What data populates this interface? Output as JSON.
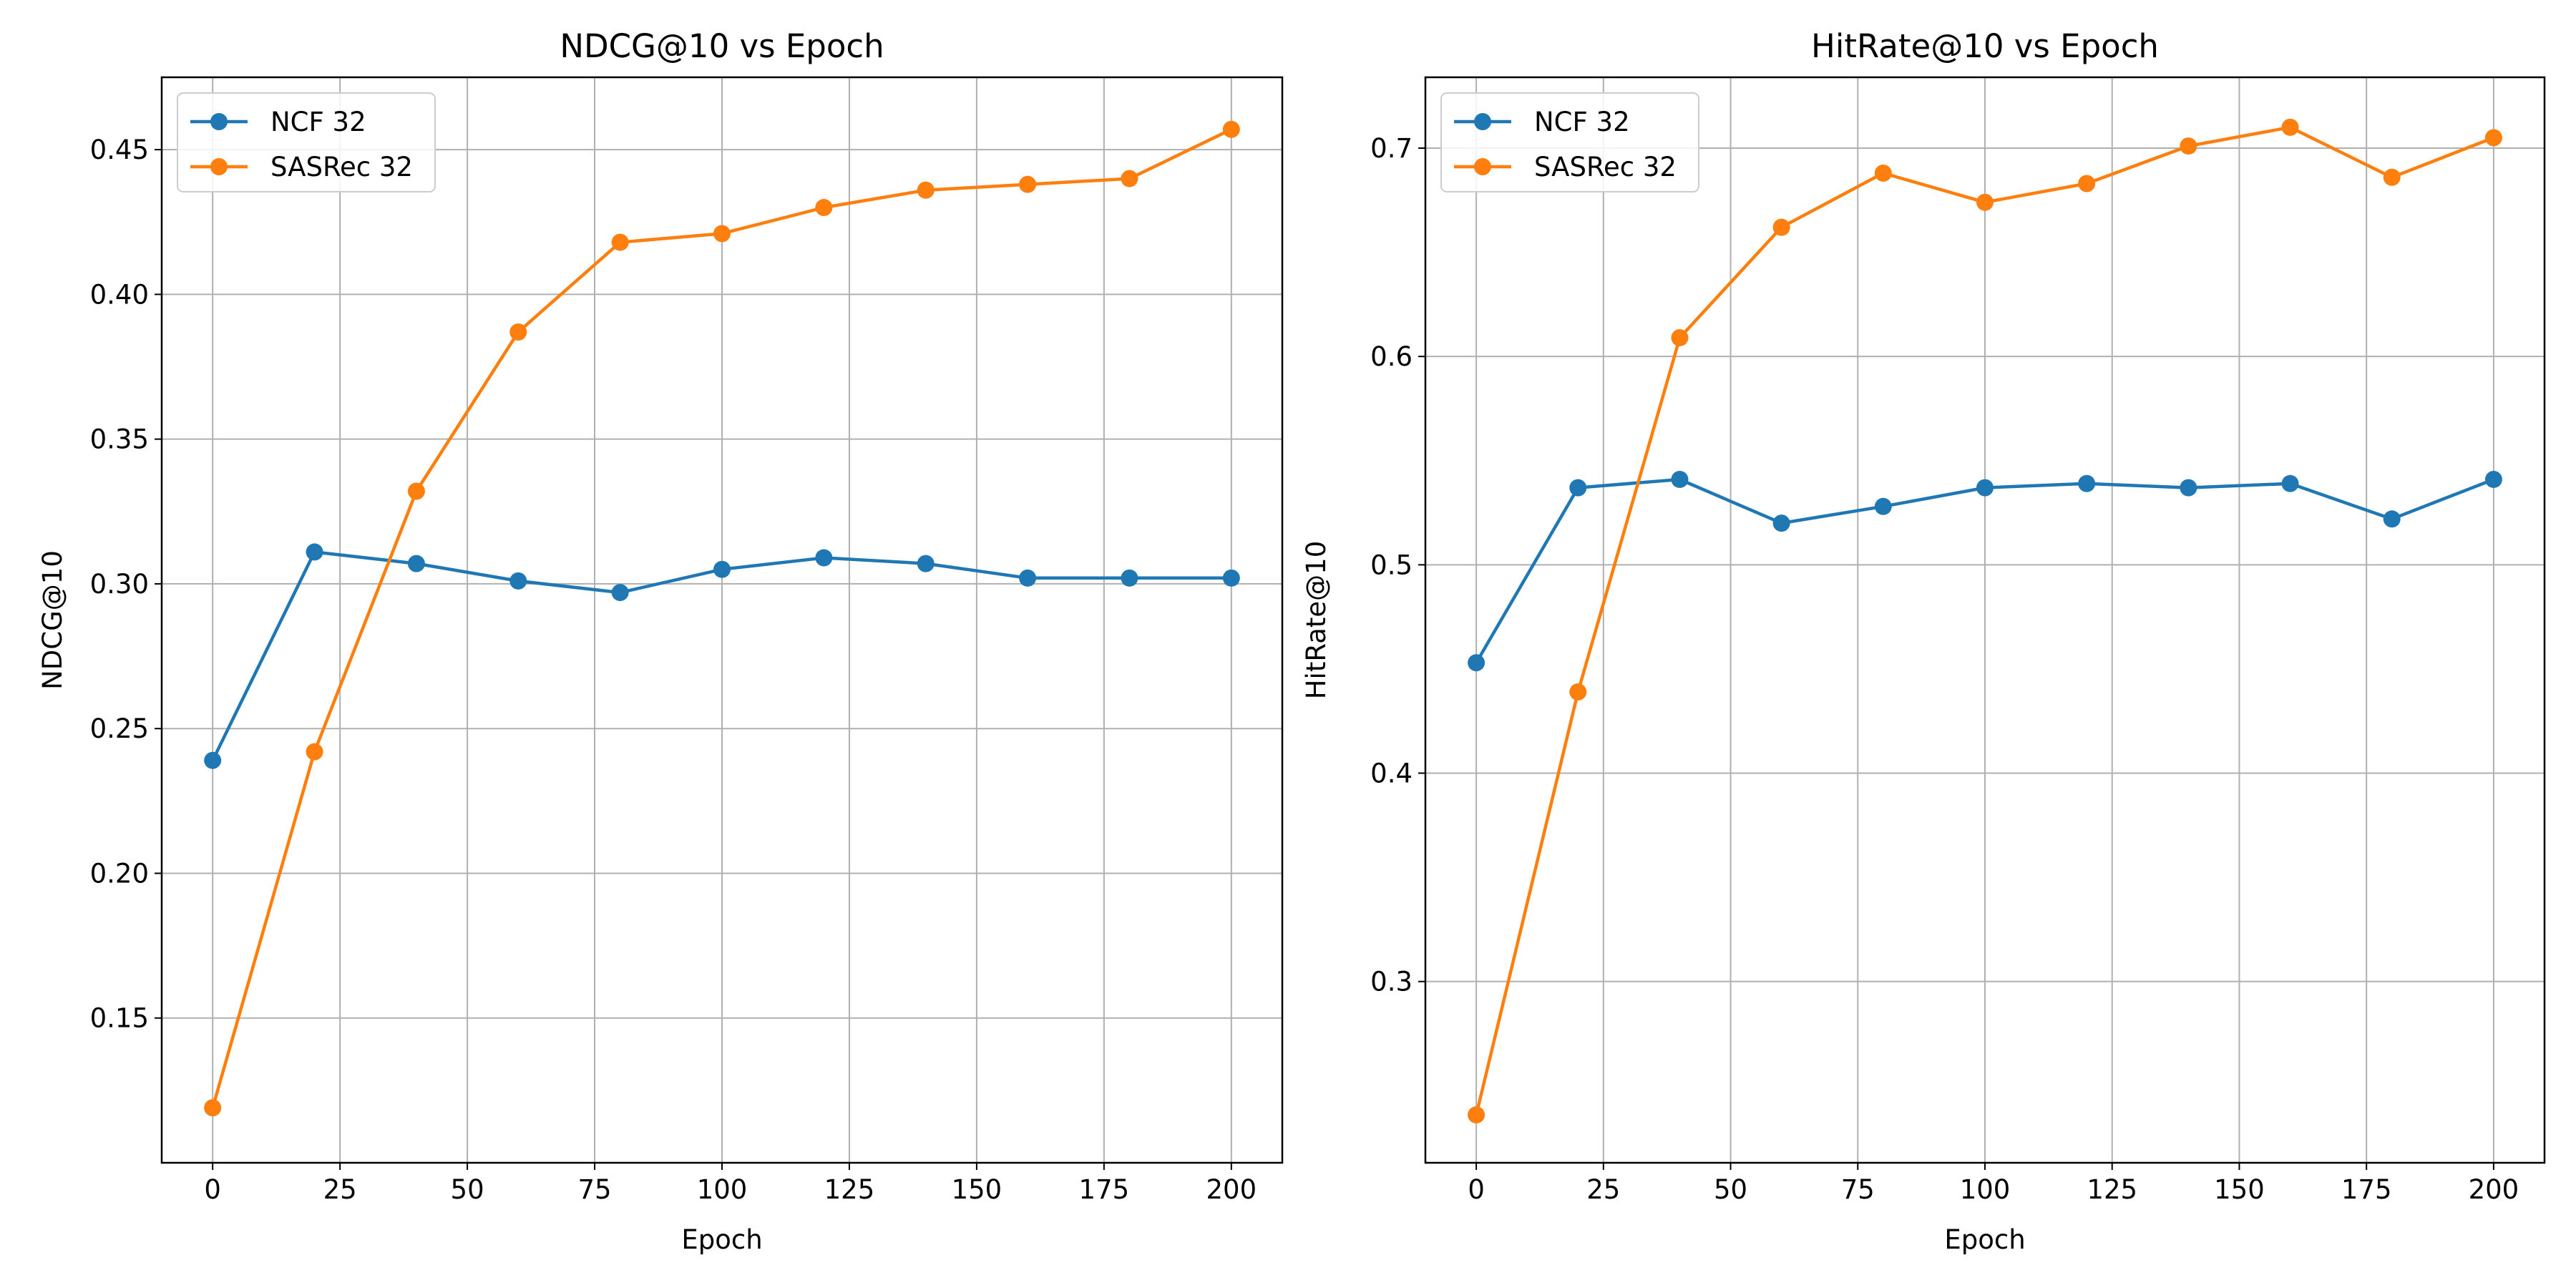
{
  "chart_data": [
    {
      "type": "line",
      "title": "NDCG@10 vs Epoch",
      "xlabel": "Epoch",
      "ylabel": "NDCG@10",
      "xlim": [
        -10,
        210
      ],
      "ylim": [
        0.1,
        0.475
      ],
      "xticks": [
        0,
        25,
        50,
        75,
        100,
        125,
        150,
        175,
        200
      ],
      "xtick_labels": [
        "0",
        "25",
        "50",
        "75",
        "100",
        "125",
        "150",
        "175",
        "200"
      ],
      "yticks": [
        0.15,
        0.2,
        0.25,
        0.3,
        0.35,
        0.4,
        0.45
      ],
      "ytick_labels": [
        "0.15",
        "0.20",
        "0.25",
        "0.30",
        "0.35",
        "0.40",
        "0.45"
      ],
      "grid": true,
      "legend_position": "top-left",
      "x": [
        0,
        20,
        40,
        60,
        80,
        100,
        120,
        140,
        160,
        180,
        200
      ],
      "series": [
        {
          "name": "NCF 32",
          "color": "#1f77b4",
          "marker": "circle",
          "values": [
            0.239,
            0.311,
            0.307,
            0.301,
            0.297,
            0.305,
            0.309,
            0.307,
            0.302,
            0.302,
            0.302
          ]
        },
        {
          "name": "SASRec 32",
          "color": "#ff7f0e",
          "marker": "circle",
          "values": [
            0.119,
            0.242,
            0.332,
            0.387,
            0.418,
            0.421,
            0.43,
            0.436,
            0.438,
            0.44,
            0.457
          ]
        }
      ]
    },
    {
      "type": "line",
      "title": "HitRate@10 vs Epoch",
      "xlabel": "Epoch",
      "ylabel": "HitRate@10",
      "xlim": [
        -10,
        210
      ],
      "ylim": [
        0.213,
        0.734
      ],
      "xticks": [
        0,
        25,
        50,
        75,
        100,
        125,
        150,
        175,
        200
      ],
      "xtick_labels": [
        "0",
        "25",
        "50",
        "75",
        "100",
        "125",
        "150",
        "175",
        "200"
      ],
      "yticks": [
        0.3,
        0.4,
        0.5,
        0.6,
        0.7
      ],
      "ytick_labels": [
        "0.3",
        "0.4",
        "0.5",
        "0.6",
        "0.7"
      ],
      "grid": true,
      "legend_position": "top-left",
      "x": [
        0,
        20,
        40,
        60,
        80,
        100,
        120,
        140,
        160,
        180,
        200
      ],
      "series": [
        {
          "name": "NCF 32",
          "color": "#1f77b4",
          "marker": "circle",
          "values": [
            0.453,
            0.537,
            0.541,
            0.52,
            0.528,
            0.537,
            0.539,
            0.537,
            0.539,
            0.522,
            0.541
          ]
        },
        {
          "name": "SASRec 32",
          "color": "#ff7f0e",
          "marker": "circle",
          "values": [
            0.236,
            0.439,
            0.609,
            0.662,
            0.688,
            0.674,
            0.683,
            0.701,
            0.71,
            0.686,
            0.705
          ]
        }
      ]
    }
  ]
}
